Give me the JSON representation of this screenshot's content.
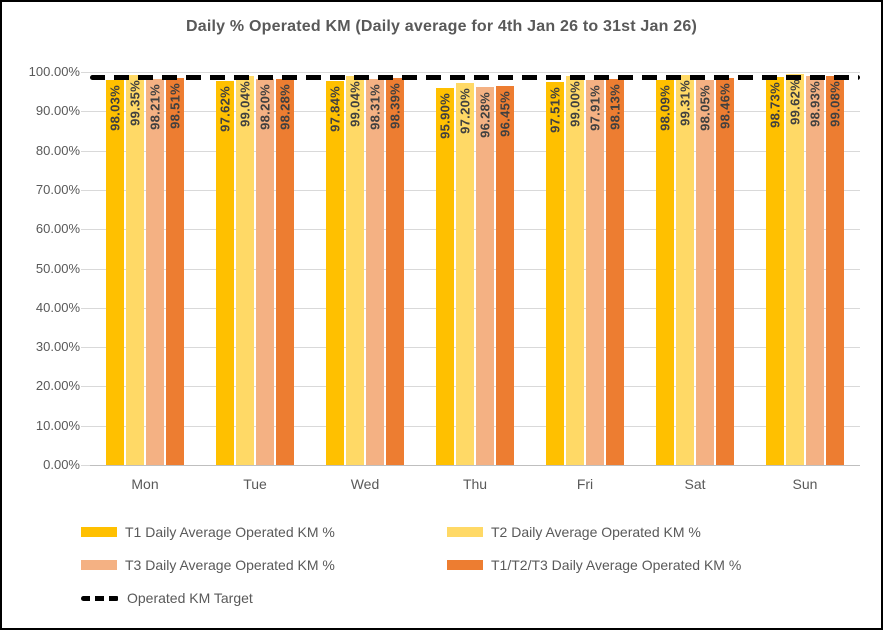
{
  "title": "Daily % Operated KM (Daily average for 4th Jan 26 to 31st Jan 26)",
  "chart_data": {
    "type": "bar",
    "title": "Daily % Operated KM (Daily average for 4th Jan 26 to 31st Jan 26)",
    "categories": [
      "Mon",
      "Tue",
      "Wed",
      "Thu",
      "Fri",
      "Sat",
      "Sun"
    ],
    "series": [
      {
        "name": "T1 Daily Average Operated KM %",
        "color": "#FFC000",
        "values": [
          98.03,
          97.62,
          97.84,
          95.9,
          97.51,
          98.09,
          98.73
        ]
      },
      {
        "name": "T2 Daily Average Operated KM %",
        "color": "#FFD966",
        "values": [
          99.35,
          99.04,
          99.04,
          97.2,
          99.0,
          99.31,
          99.62
        ]
      },
      {
        "name": "T3 Daily Average Operated KM %",
        "color": "#F4B183",
        "values": [
          98.21,
          98.2,
          98.31,
          96.28,
          97.91,
          98.05,
          98.93
        ]
      },
      {
        "name": "T1/T2/T3 Daily Average Operated KM %",
        "color": "#ED7D31",
        "values": [
          98.51,
          98.28,
          98.39,
          96.45,
          98.13,
          98.46,
          99.08
        ]
      }
    ],
    "target_line": {
      "name": "Operated KM Target",
      "value": 98.5,
      "color": "#000000",
      "style": "dashed"
    },
    "ylim": [
      0,
      100
    ],
    "ytick_step": 10,
    "ytick_suffix": "%",
    "ytick_decimals": 2,
    "data_label_decimals": 2,
    "data_label_suffix": "%",
    "grid": true,
    "legend_position": "bottom",
    "label_rotation": "vertical"
  },
  "style_colors": {
    "grid": "#D9D9D9",
    "axis": "#BFBFBF",
    "text": "#595959",
    "data_label": "#404040"
  }
}
